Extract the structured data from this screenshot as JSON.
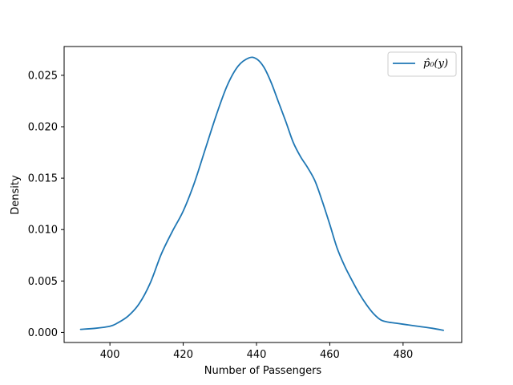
{
  "chart_data": {
    "type": "line",
    "xlabel": "Number of Passengers",
    "ylabel": "Density",
    "xlim": [
      387.5,
      496.0
    ],
    "ylim": [
      -0.00098,
      0.0278
    ],
    "x_ticks": [
      400,
      420,
      440,
      460,
      480
    ],
    "y_ticks": [
      0.0,
      0.005,
      0.01,
      0.015,
      0.02,
      0.025
    ],
    "y_tick_labels": [
      "0.000",
      "0.005",
      "0.010",
      "0.015",
      "0.020",
      "0.025"
    ],
    "grid": false,
    "legend_position": "top-right",
    "series": [
      {
        "name": "p̂₀(y)",
        "color": "#1f77b4",
        "x": [
          392,
          396,
          400,
          402,
          405,
          408,
          411,
          414,
          417,
          420,
          423,
          426,
          429,
          432,
          435,
          438,
          440,
          442,
          444,
          446,
          448,
          450,
          452,
          454,
          456,
          458,
          460,
          462,
          464,
          466,
          468,
          470,
          472,
          474,
          476,
          478,
          480,
          484,
          488,
          491
        ],
        "y": [
          0.0003,
          0.0004,
          0.0006,
          0.0009,
          0.0016,
          0.0028,
          0.0048,
          0.0076,
          0.0098,
          0.0118,
          0.0145,
          0.0178,
          0.0211,
          0.024,
          0.0259,
          0.0267,
          0.0266,
          0.0258,
          0.0243,
          0.0224,
          0.0205,
          0.0185,
          0.0171,
          0.016,
          0.0147,
          0.0127,
          0.0105,
          0.0082,
          0.0065,
          0.0051,
          0.0038,
          0.0027,
          0.0018,
          0.0012,
          0.001,
          0.0009,
          0.0008,
          0.0006,
          0.0004,
          0.0002
        ]
      }
    ]
  }
}
